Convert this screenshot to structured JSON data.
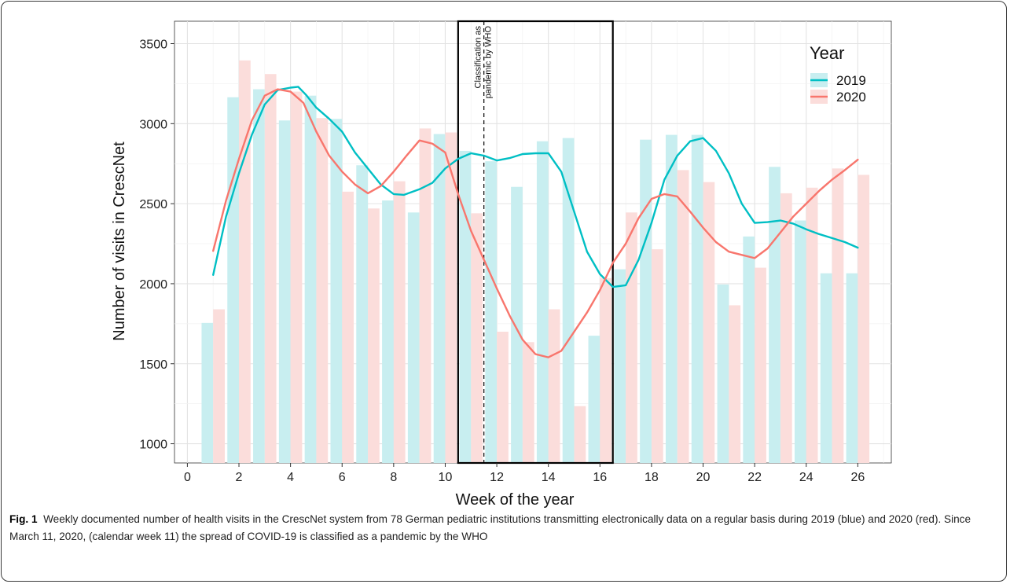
{
  "caption": {
    "label": "Fig. 1",
    "text": "Weekly documented number of health visits in the CrescNet system from 78 German pediatric institutions transmitting electronically data on a regular basis during 2019 (blue) and 2020 (red). Since March 11, 2020, (calendar week 11) the spread of COVID-19 is classified as a pandemic by the WHO"
  },
  "chart_data": {
    "type": "bar",
    "xlabel": "Week of the year",
    "ylabel": "Number of visits in CrescNet",
    "xlim": [
      -0.5,
      27.3
    ],
    "ylim": [
      880,
      3640
    ],
    "xticks": [
      0,
      2,
      4,
      6,
      8,
      10,
      12,
      14,
      16,
      18,
      20,
      22,
      24,
      26
    ],
    "yticks": [
      1000,
      1500,
      2000,
      2500,
      3000,
      3500
    ],
    "grid": true,
    "legend": {
      "title": "Year",
      "position": "top-right"
    },
    "x": [
      1,
      2,
      3,
      4,
      5,
      6,
      7,
      8,
      9,
      10,
      11,
      12,
      13,
      14,
      15,
      16,
      17,
      18,
      19,
      20,
      21,
      22,
      23,
      24,
      25,
      26
    ],
    "series": [
      {
        "name": "2019",
        "color": "#00BFC4",
        "bar_color": "#C8EEF0",
        "values": [
          1755,
          3165,
          3215,
          3020,
          3175,
          3030,
          2740,
          2520,
          2445,
          2935,
          2830,
          2765,
          2605,
          2890,
          2910,
          1675,
          2090,
          2900,
          2930,
          2930,
          1995,
          2295,
          2730,
          2395,
          2065,
          2065
        ],
        "smooth": [
          [
            1,
            2055
          ],
          [
            1.5,
            2420
          ],
          [
            2,
            2690
          ],
          [
            2.5,
            2930
          ],
          [
            3,
            3120
          ],
          [
            3.5,
            3210
          ],
          [
            4,
            3225
          ],
          [
            4.3,
            3230
          ],
          [
            4.6,
            3180
          ],
          [
            5,
            3100
          ],
          [
            5.5,
            3030
          ],
          [
            6,
            2950
          ],
          [
            6.5,
            2820
          ],
          [
            7,
            2720
          ],
          [
            7.5,
            2620
          ],
          [
            8,
            2560
          ],
          [
            8.4,
            2555
          ],
          [
            9,
            2590
          ],
          [
            9.5,
            2630
          ],
          [
            10,
            2720
          ],
          [
            10.5,
            2780
          ],
          [
            11,
            2815
          ],
          [
            11.5,
            2800
          ],
          [
            12,
            2770
          ],
          [
            12.5,
            2785
          ],
          [
            13,
            2810
          ],
          [
            13.5,
            2815
          ],
          [
            14,
            2815
          ],
          [
            14.5,
            2700
          ],
          [
            15,
            2450
          ],
          [
            15.5,
            2200
          ],
          [
            16,
            2060
          ],
          [
            16.5,
            1980
          ],
          [
            17,
            1990
          ],
          [
            17.5,
            2150
          ],
          [
            18,
            2380
          ],
          [
            18.5,
            2650
          ],
          [
            19,
            2800
          ],
          [
            19.5,
            2890
          ],
          [
            20,
            2910
          ],
          [
            20.5,
            2830
          ],
          [
            21,
            2690
          ],
          [
            21.5,
            2500
          ],
          [
            22,
            2380
          ],
          [
            22.5,
            2385
          ],
          [
            23,
            2395
          ],
          [
            23.5,
            2375
          ],
          [
            24,
            2340
          ],
          [
            24.5,
            2310
          ],
          [
            25,
            2285
          ],
          [
            25.5,
            2260
          ],
          [
            26,
            2225
          ]
        ]
      },
      {
        "name": "2020",
        "color": "#F8766D",
        "bar_color": "#FBDDDB",
        "values": [
          1840,
          3395,
          3310,
          3200,
          3035,
          2575,
          2470,
          2640,
          2970,
          2945,
          2440,
          1700,
          1635,
          1840,
          1235,
          2035,
          2445,
          2215,
          2710,
          2635,
          1865,
          2100,
          2565,
          2600,
          2720,
          2680
        ],
        "smooth": [
          [
            1,
            2205
          ],
          [
            1.5,
            2520
          ],
          [
            2,
            2780
          ],
          [
            2.5,
            3020
          ],
          [
            3,
            3175
          ],
          [
            3.5,
            3215
          ],
          [
            4,
            3200
          ],
          [
            4.5,
            3130
          ],
          [
            5,
            2950
          ],
          [
            5.5,
            2800
          ],
          [
            6,
            2700
          ],
          [
            6.5,
            2620
          ],
          [
            7,
            2565
          ],
          [
            7.5,
            2610
          ],
          [
            8,
            2700
          ],
          [
            8.5,
            2800
          ],
          [
            9,
            2895
          ],
          [
            9.5,
            2875
          ],
          [
            10,
            2820
          ],
          [
            10.5,
            2560
          ],
          [
            11,
            2330
          ],
          [
            11.5,
            2150
          ],
          [
            12,
            1970
          ],
          [
            12.5,
            1800
          ],
          [
            13,
            1650
          ],
          [
            13.5,
            1560
          ],
          [
            14,
            1540
          ],
          [
            14.5,
            1580
          ],
          [
            15,
            1700
          ],
          [
            15.5,
            1820
          ],
          [
            16,
            1960
          ],
          [
            16.5,
            2130
          ],
          [
            17,
            2250
          ],
          [
            17.5,
            2410
          ],
          [
            18,
            2530
          ],
          [
            18.5,
            2560
          ],
          [
            19,
            2545
          ],
          [
            19.5,
            2450
          ],
          [
            20,
            2350
          ],
          [
            20.5,
            2260
          ],
          [
            21,
            2200
          ],
          [
            21.5,
            2180
          ],
          [
            22,
            2160
          ],
          [
            22.5,
            2220
          ],
          [
            23,
            2320
          ],
          [
            23.5,
            2420
          ],
          [
            24,
            2500
          ],
          [
            24.5,
            2580
          ],
          [
            25,
            2650
          ],
          [
            25.5,
            2710
          ],
          [
            26,
            2775
          ]
        ]
      }
    ],
    "annotations": {
      "box": {
        "x_from": 10.5,
        "x_to": 16.5
      },
      "dashed_line": {
        "x": 11.5
      },
      "label": [
        "Classification as",
        "pandemic by WHO"
      ]
    }
  }
}
